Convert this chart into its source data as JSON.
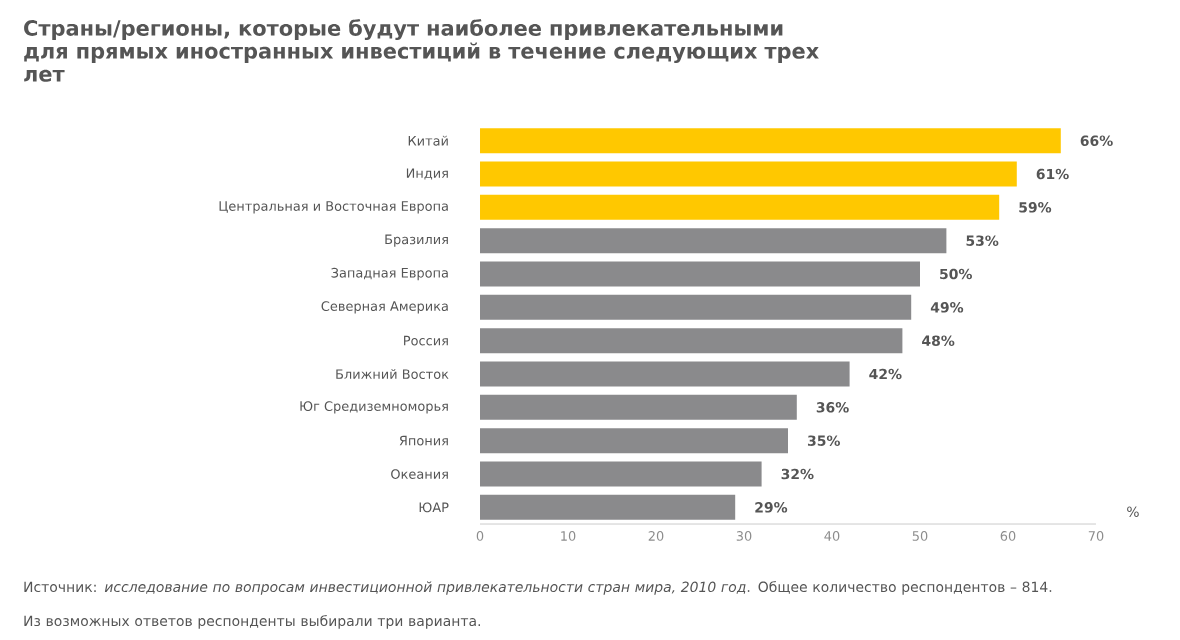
{
  "chart_data": {
    "type": "bar",
    "orientation": "horizontal",
    "title": "Страны/регионы, которые будут наиболее привлекательными для прямых иностранных инвестиций в течение следующих трех лет",
    "categories": [
      "Китай",
      "Индия",
      "Центральная и Восточная Европа",
      "Бразилия",
      "Западная Европа",
      "Северная Америка",
      "Россия",
      "Ближний Восток",
      "Юг Средиземноморья",
      "Япония",
      "Океания",
      "ЮАР"
    ],
    "values": [
      66,
      61,
      59,
      53,
      50,
      49,
      48,
      42,
      36,
      35,
      32,
      29
    ],
    "colors": [
      "#ffc800",
      "#ffc800",
      "#ffc800",
      "#8a8a8c",
      "#8a8a8c",
      "#8a8a8c",
      "#8a8a8c",
      "#8a8a8c",
      "#8a8a8c",
      "#8a8a8c",
      "#8a8a8c",
      "#8a8a8c"
    ],
    "value_labels": [
      "66%",
      "61%",
      "59%",
      "53%",
      "50%",
      "49%",
      "48%",
      "42%",
      "36%",
      "35%",
      "32%",
      "29%"
    ],
    "xlim": [
      0,
      70
    ],
    "xticks": [
      0,
      10,
      20,
      30,
      40,
      50,
      60,
      70
    ],
    "xlabel": "%",
    "annotations": [
      "Источник: *исследование по вопросам инвестиционной привлекательности стран мира, 2010 год*. Общее количество респондентов – 814.",
      "Из возможных ответов респонденты выбирали три варианта."
    ]
  }
}
